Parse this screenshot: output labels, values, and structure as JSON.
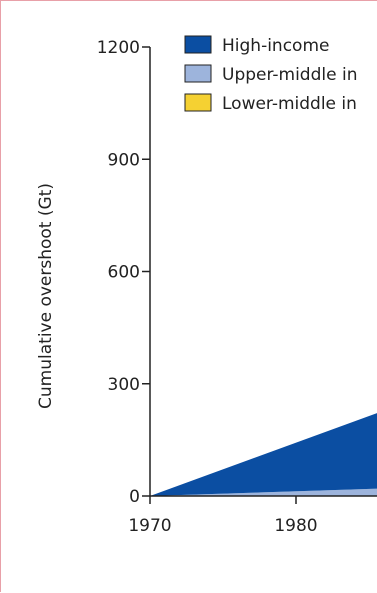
{
  "chart_data": {
    "type": "area",
    "stacked": true,
    "title": "",
    "xlabel": "",
    "ylabel": "Cumulative overshoot (Gt)",
    "xlim": [
      1970,
      1986
    ],
    "ylim": [
      0,
      1200
    ],
    "x_ticks": [
      "1970",
      "1980"
    ],
    "y_ticks": [
      "0",
      "300",
      "600",
      "900",
      "1200"
    ],
    "legend_position": "top-left",
    "legend": [
      "High-income",
      "Upper-middle in",
      "Lower-middle in"
    ],
    "x": [
      1970,
      1986
    ],
    "series": [
      {
        "name": "Lower-middle income",
        "color": "#f5d132",
        "values": [
          0,
          0
        ]
      },
      {
        "name": "Upper-middle income",
        "color": "#9db4dc",
        "values": [
          0,
          20
        ]
      },
      {
        "name": "High-income",
        "color": "#0b4ea2",
        "values": [
          0,
          208
        ]
      }
    ]
  }
}
